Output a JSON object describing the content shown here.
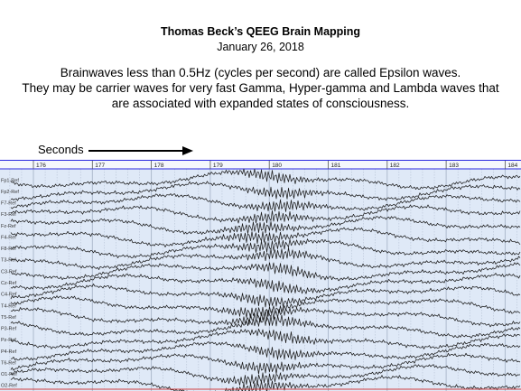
{
  "slide": {
    "title": "Thomas Beck’s QEEG Brain Mapping",
    "date": "January 26, 2018",
    "description_lines": [
      "Brainwaves less than 0.5Hz (cycles per second) are called Epsilon waves.",
      "They may be carrier waves for very fast Gamma, Hyper-gamma and Lambda waves that",
      "are associated with expanded states of consciousness."
    ],
    "seconds_label": "Seconds"
  },
  "eeg": {
    "time_ticks": [
      "176",
      "177",
      "178",
      "179",
      "180",
      "181",
      "182",
      "183",
      "184"
    ],
    "channel_labels": [
      "Fp1-Ref",
      "Fp2-Ref",
      "F7-Ref",
      "F3-Ref",
      "Fz-Ref",
      "F4-Ref",
      "F8-Ref",
      "T3-Ref",
      "C3-Ref",
      "Cz-Ref",
      "C4-Ref",
      "T4-Ref",
      "T5-Ref",
      "P3-Ref",
      "Pz-Ref",
      "P4-Ref",
      "T6-Ref",
      "O1-Ref",
      "O2-Ref"
    ],
    "colors": {
      "background": "#dfe9f7",
      "grid": "#a9b6c9",
      "trace": "#1a1a1a",
      "header_border": "#2a2adf",
      "bottom_line": "#d04040"
    }
  }
}
